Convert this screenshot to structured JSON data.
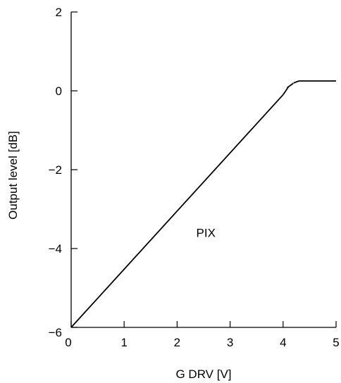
{
  "chart_data": {
    "type": "line",
    "xlabel": "G DRV [V]",
    "ylabel": "Output level [dB]",
    "xlim": [
      0,
      5
    ],
    "ylim": [
      -6,
      2
    ],
    "x_ticks": [
      0,
      1,
      2,
      3,
      4,
      5
    ],
    "y_ticks": [
      2,
      0,
      -2,
      -4,
      -6
    ],
    "x_tick_labels": [
      "0",
      "1",
      "2",
      "3",
      "4",
      "5"
    ],
    "y_tick_labels": [
      "2",
      "0",
      "−2",
      "−4",
      "−6"
    ],
    "grid": false,
    "series": [
      {
        "x": [
          0,
          4.0,
          4.1,
          4.2,
          4.3,
          5.0
        ],
        "y": [
          -6,
          -0.1,
          0.1,
          0.2,
          0.25,
          0.25
        ]
      }
    ],
    "annotations": [
      {
        "text": "PIX",
        "x": 2.6,
        "y": -3.6
      }
    ],
    "colors": {
      "line": "#000000",
      "axis": "#000000"
    }
  }
}
